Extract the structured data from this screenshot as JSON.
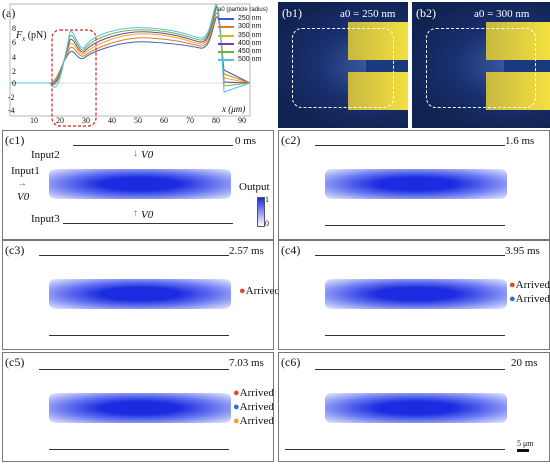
{
  "panel_a": {
    "label": "(a)",
    "ylabel": "F",
    "ylabel_sub": "x",
    "ylabel_unit": "(pN)",
    "xlabel": "x (μm)",
    "yticks": [
      "8",
      "6",
      "4",
      "2",
      "0",
      "-2",
      "-4"
    ],
    "xticks": [
      "10",
      "20",
      "30",
      "40",
      "50",
      "60",
      "70",
      "80",
      "90"
    ],
    "legend_title": "a0 (particle radius)",
    "legend": [
      {
        "name": "250 nm",
        "color": "#3b5fc4"
      },
      {
        "name": "300 nm",
        "color": "#e07a2c"
      },
      {
        "name": "350 nm",
        "color": "#e0b020"
      },
      {
        "name": "400 nm",
        "color": "#7a3c9a"
      },
      {
        "name": "450 nm",
        "color": "#6fb33d"
      },
      {
        "name": "500 nm",
        "color": "#4fc3e8"
      }
    ]
  },
  "panel_b1": {
    "label": "(b1)",
    "caption": "a0 = 250 nm"
  },
  "panel_b2": {
    "label": "(b2)",
    "caption": "a0 = 300 nm"
  },
  "panel_c1": {
    "label": "(c1)",
    "time": "0 ms",
    "input1": "Input1",
    "input2": "Input2",
    "input3": "Input3",
    "output": "Output",
    "v0": "V0",
    "colorbar_max": "1",
    "colorbar_min": "0"
  },
  "panel_c2": {
    "label": "(c2)",
    "time": "1.6 ms"
  },
  "panel_c3": {
    "label": "(c3)",
    "time": "2.57 ms",
    "arrived": [
      "Arrived"
    ]
  },
  "panel_c4": {
    "label": "(c4)",
    "time": "3.95 ms",
    "arrived": [
      "Arrived",
      "Arrived"
    ]
  },
  "panel_c5": {
    "label": "(c5)",
    "time": "7.03 ms",
    "arrived": [
      "Arrived",
      "Arrived",
      "Arrived"
    ]
  },
  "panel_c6": {
    "label": "(c6)",
    "time": "20 ms",
    "scale": "5 μm"
  },
  "colors": {
    "dot_red": "#e04a2a",
    "dot_blue": "#2c6fd1",
    "dot_orange": "#f0a030",
    "waveguide": "#1a2be0"
  }
}
